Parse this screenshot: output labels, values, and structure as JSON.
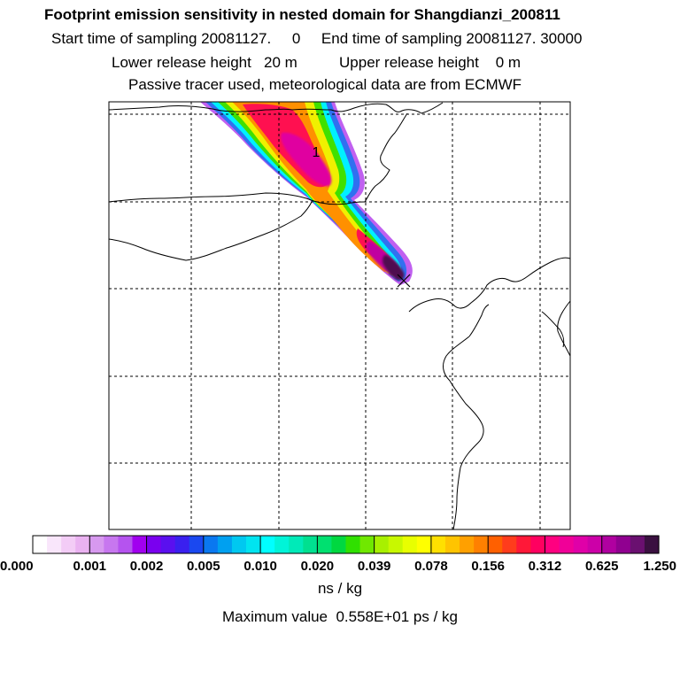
{
  "header": {
    "title": "Footprint emission sensitivity in nested domain for Shangdianzi_200811",
    "line2": "Start time of sampling 20081127.     0     End time of sampling 20081127. 30000",
    "line3": "Lower release height   20 m          Upper release height    0 m",
    "line4": "Passive tracer used, meteorological data are from ECMWF"
  },
  "chart_data": {
    "type": "heatmap",
    "title": "Footprint emission sensitivity in nested domain for Shangdianzi_200811",
    "plume_label": "1",
    "receptor_marker": "x",
    "grid": true,
    "colorbar": {
      "tick_labels": [
        "0.000",
        "0.001",
        "0.002",
        "0.005",
        "0.010",
        "0.020",
        "0.039",
        "0.078",
        "0.156",
        "0.312",
        "0.625",
        "1.250"
      ],
      "tick_values": [
        0.0,
        0.001,
        0.002,
        0.005,
        0.01,
        0.02,
        0.039,
        0.078,
        0.156,
        0.312,
        0.625,
        1.25
      ],
      "colors": [
        "#ffffff",
        "#f9e6fb",
        "#f3ccf6",
        "#eab2f1",
        "#d799ef",
        "#c777ef",
        "#b553ef",
        "#a100ef",
        "#7a00ef",
        "#5a10ef",
        "#3a20ef",
        "#1a48f0",
        "#0a78f0",
        "#00a0f0",
        "#00c8f0",
        "#00e4f0",
        "#00ffff",
        "#00f4d8",
        "#00eab8",
        "#00e090",
        "#00e070",
        "#00d840",
        "#30e000",
        "#70e800",
        "#a8f000",
        "#c8f800",
        "#e8ff00",
        "#ffff00",
        "#ffe000",
        "#ffc400",
        "#ffa000",
        "#ff8000",
        "#ff6000",
        "#ff3c1c",
        "#ff1838",
        "#ff0060",
        "#ff0080",
        "#f00098",
        "#e000a8",
        "#cc00a8",
        "#b000a0",
        "#900090",
        "#6a1070",
        "#3a1040"
      ],
      "unit": "ns / kg"
    },
    "max_value": {
      "label": "Maximum value",
      "value": "0.558E+01",
      "unit": "ps / kg"
    }
  }
}
